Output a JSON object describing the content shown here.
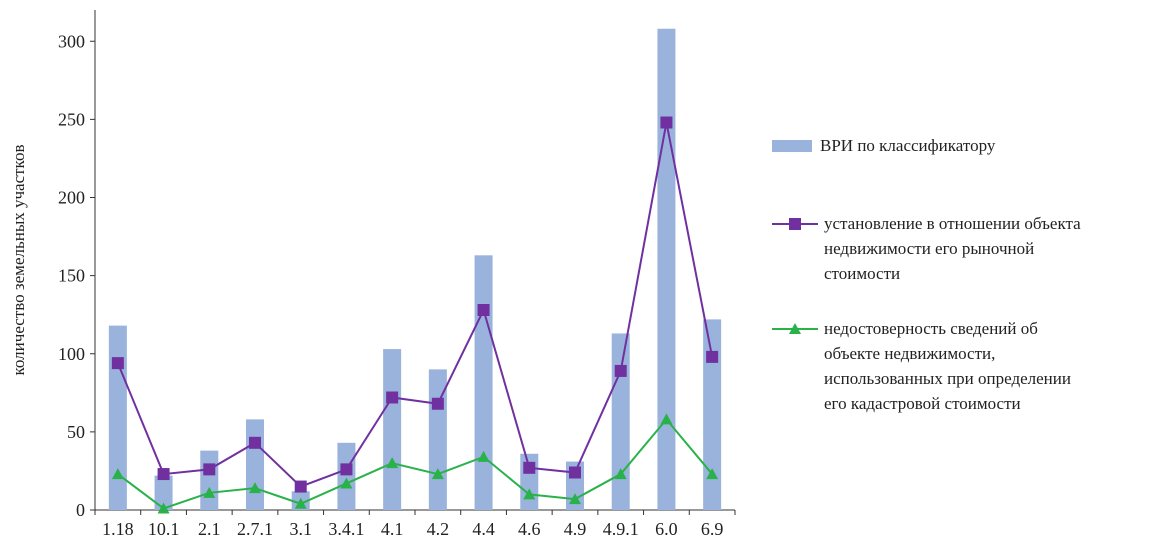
{
  "chart_data": {
    "type": "bar",
    "title": "",
    "xlabel": "",
    "ylabel": "количество земельных участков",
    "ylim": [
      0,
      320
    ],
    "yticks": [
      0,
      50,
      100,
      150,
      200,
      250,
      300
    ],
    "grid": false,
    "legend_position": "right",
    "categories": [
      "1.18",
      "10.1",
      "2.1",
      "2.7.1",
      "3.1",
      "3.4.1",
      "4.1",
      "4.2",
      "4.4",
      "4.6",
      "4.9",
      "4.9.1",
      "6.0",
      "6.9"
    ],
    "series": [
      {
        "name": "ВРИ по классификатору",
        "type": "bar",
        "color": "#9ab3dc",
        "values": [
          118,
          22,
          38,
          58,
          12,
          43,
          103,
          90,
          163,
          36,
          31,
          113,
          308,
          122
        ]
      },
      {
        "name": "установление в отношении объекта недвижимости его рыночной стоимости",
        "type": "line",
        "marker": "square",
        "color": "#7030a0",
        "values": [
          94,
          23,
          26,
          43,
          15,
          26,
          72,
          68,
          128,
          27,
          24,
          89,
          248,
          98
        ]
      },
      {
        "name": "недостоверность сведений об объекте недвижимости, использованных при определении его кадастровой стоимости",
        "type": "line",
        "marker": "triangle",
        "color": "#2ab24a",
        "values": [
          23,
          1,
          11,
          14,
          4,
          17,
          30,
          23,
          34,
          10,
          7,
          23,
          58,
          23
        ]
      }
    ],
    "legend_lines": [
      [
        "ВРИ по классификатору"
      ],
      [
        "установление в отношении объекта",
        "недвижимости его рыночной",
        "стоимости"
      ],
      [
        "недостоверность сведений об",
        "объекте недвижимости,",
        "использованных при определении",
        "его кадастровой стоимости"
      ]
    ]
  }
}
